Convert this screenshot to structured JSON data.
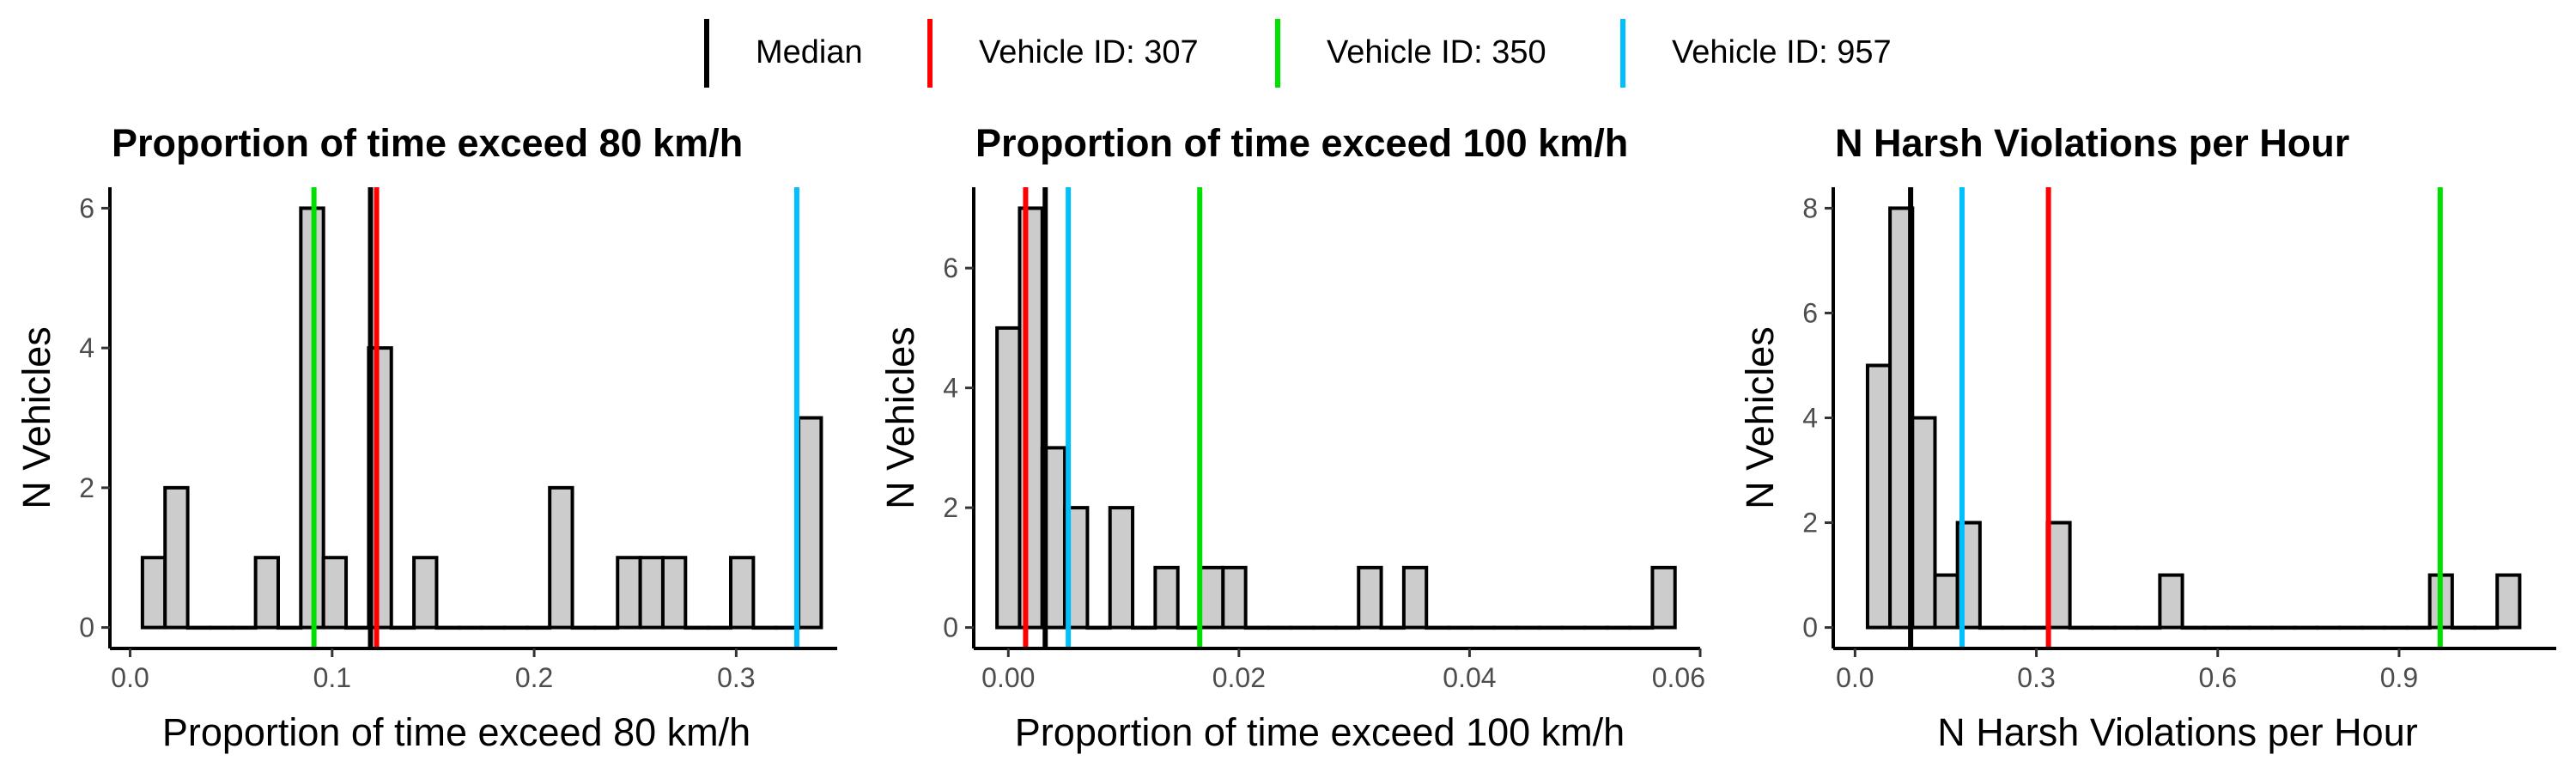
{
  "legend": {
    "items": [
      {
        "label": "Median",
        "color": "#000000"
      },
      {
        "label": "Vehicle ID: 307",
        "color": "#ff0000"
      },
      {
        "label": "Vehicle ID: 350",
        "color": "#00e000"
      },
      {
        "label": "Vehicle ID: 957",
        "color": "#00bfff"
      }
    ]
  },
  "chart_data": [
    {
      "type": "bar",
      "title": "Proportion of time exceed 80 km/h",
      "xlabel": "Proportion of time exceed 80 km/h",
      "ylabel": "N Vehicles",
      "xlim": [
        -0.01,
        0.35
      ],
      "ylim": [
        -0.3,
        6.3
      ],
      "xticks": [
        0.0,
        0.1,
        0.2,
        0.3
      ],
      "xtick_labels": [
        "0.0",
        "0.1",
        "0.2",
        "0.3"
      ],
      "yticks": [
        0,
        2,
        4,
        6
      ],
      "bin_width": 0.0112,
      "bins_start": 0.0061,
      "counts": [
        1,
        2,
        0,
        0,
        0,
        1,
        0,
        6,
        1,
        0,
        4,
        0,
        1,
        0,
        0,
        0,
        0,
        0,
        2,
        0,
        0,
        1,
        1,
        1,
        0,
        0,
        1,
        0,
        0,
        3
      ],
      "vlines": [
        {
          "name": "Median",
          "x": 0.119,
          "color": "#000000"
        },
        {
          "name": "Vehicle ID: 307",
          "x": 0.122,
          "color": "#ff0000"
        },
        {
          "name": "Vehicle ID: 350",
          "x": 0.091,
          "color": "#00e000"
        },
        {
          "name": "Vehicle ID: 957",
          "x": 0.33,
          "color": "#00bfff"
        }
      ]
    },
    {
      "type": "bar",
      "title": "Proportion of time exceed 100 km/h",
      "xlabel": "Proportion of time exceed 100 km/h",
      "ylabel": "N Vehicles",
      "xlim": [
        -0.003,
        0.06
      ],
      "ylim": [
        -0.35,
        7.35
      ],
      "xticks": [
        0.0,
        0.02,
        0.04,
        0.06
      ],
      "xtick_labels": [
        "0.00",
        "0.02",
        "0.04",
        "0.06"
      ],
      "yticks": [
        0,
        2,
        4,
        6
      ],
      "bin_width": 0.00196,
      "bins_start": -0.00098,
      "counts": [
        5,
        7,
        3,
        2,
        0,
        2,
        0,
        1,
        0,
        1,
        1,
        0,
        0,
        0,
        0,
        0,
        1,
        0,
        1,
        0,
        0,
        0,
        0,
        0,
        0,
        0,
        0,
        0,
        0,
        1
      ],
      "vlines": [
        {
          "name": "Median",
          "x": 0.0032,
          "color": "#000000"
        },
        {
          "name": "Vehicle ID: 307",
          "x": 0.0015,
          "color": "#ff0000"
        },
        {
          "name": "Vehicle ID: 350",
          "x": 0.0166,
          "color": "#00e000"
        },
        {
          "name": "Vehicle ID: 957",
          "x": 0.0052,
          "color": "#00bfff"
        }
      ]
    },
    {
      "type": "bar",
      "title": "N Harsh Violations per Hour",
      "xlabel": "N Harsh Violations per Hour",
      "ylabel": "N Vehicles",
      "xlim": [
        -0.036,
        1.16
      ],
      "ylim": [
        -0.4,
        8.4
      ],
      "xticks": [
        0.0,
        0.3,
        0.6,
        0.9
      ],
      "xtick_labels": [
        "0.0",
        "0.3",
        "0.6",
        "0.9"
      ],
      "yticks": [
        0,
        2,
        4,
        6,
        8
      ],
      "bin_width": 0.0372,
      "bins_start": 0.0207,
      "counts": [
        5,
        8,
        4,
        1,
        2,
        0,
        0,
        0,
        2,
        0,
        0,
        0,
        0,
        1,
        0,
        0,
        0,
        0,
        0,
        0,
        0,
        0,
        0,
        0,
        0,
        1,
        0,
        0,
        1
      ],
      "vlines": [
        {
          "name": "Median",
          "x": 0.092,
          "color": "#000000"
        },
        {
          "name": "Vehicle ID: 307",
          "x": 0.32,
          "color": "#ff0000"
        },
        {
          "name": "Vehicle ID: 350",
          "x": 0.968,
          "color": "#00e000"
        },
        {
          "name": "Vehicle ID: 957",
          "x": 0.177,
          "color": "#00bfff"
        }
      ]
    }
  ]
}
